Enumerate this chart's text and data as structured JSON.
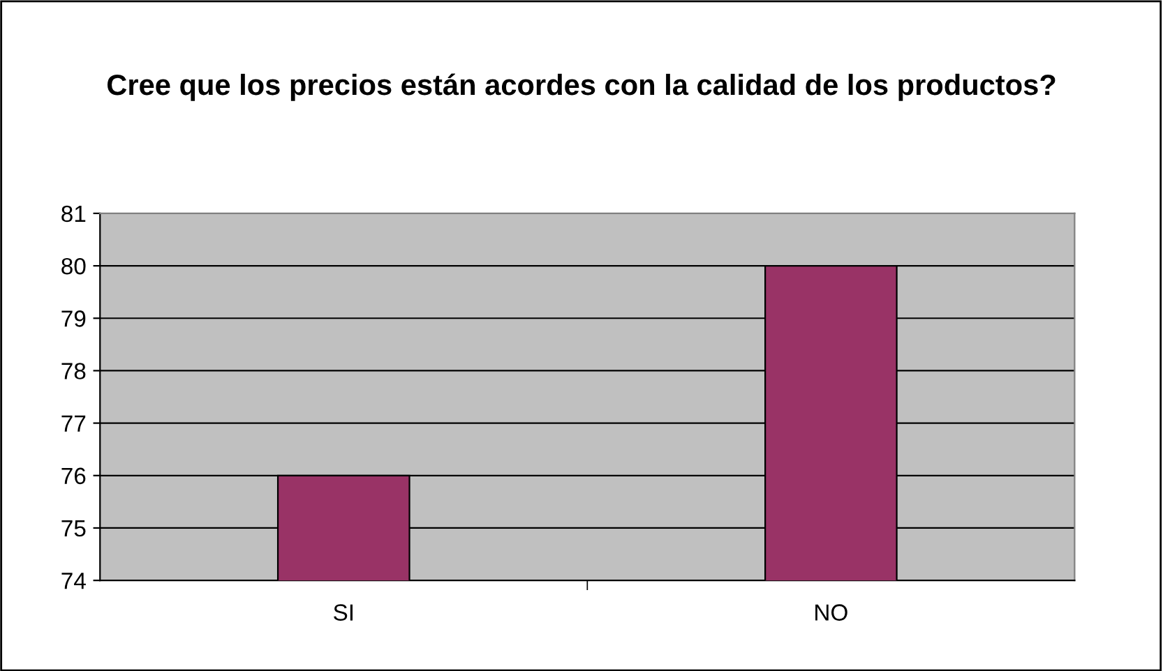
{
  "chart_data": {
    "type": "bar",
    "title": "Cree que los precios están acordes con la calidad de los productos?",
    "categories": [
      "SI",
      "NO"
    ],
    "values": [
      76,
      80
    ],
    "color": "#993366",
    "ylim": [
      74,
      81
    ],
    "yticks": [
      74,
      75,
      76,
      77,
      78,
      79,
      80,
      81
    ],
    "grid": "y",
    "legend": false
  }
}
